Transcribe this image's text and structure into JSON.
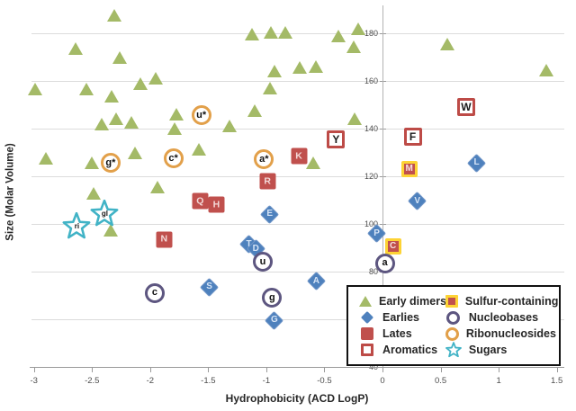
{
  "chart_data": {
    "type": "scatter",
    "title": "",
    "xlabel": "Hydrophobicity (ACD LogP)",
    "ylabel": "Size (Molar Volume)",
    "xlim": [
      -3,
      1.5
    ],
    "ylim": [
      40,
      190
    ],
    "x_ticks": [
      -3,
      -2.5,
      -2,
      -1.5,
      -1,
      -0.5,
      0,
      0.5,
      1,
      1.5
    ],
    "y_ticks": [
      40,
      60,
      80,
      100,
      120,
      140,
      160,
      180
    ],
    "grid": "horizontal",
    "legend_position": "inside-bottom-right",
    "colors": {
      "early_dimers": "#a4ba67",
      "earlies": "#4e81bd",
      "lates": "#c0504d",
      "aromatics_border": "#bd4b47",
      "sulfur_highlight": "#fdd335",
      "nucleobases_ring": "#5d5680",
      "ribonucleosides_ring": "#e2a04a",
      "sugars": "#41b3c6"
    },
    "series": [
      {
        "name": "Early dimers",
        "key": "early-dimers",
        "marker": "triangle",
        "color": "#a4ba67",
        "points": [
          {
            "x": -2.31,
            "y": 187.5
          },
          {
            "x": -2.64,
            "y": 173.5
          },
          {
            "x": -2.26,
            "y": 170
          },
          {
            "x": -2.99,
            "y": 156.5
          },
          {
            "x": -2.55,
            "y": 156.5
          },
          {
            "x": -2.33,
            "y": 153.5
          },
          {
            "x": -2.08,
            "y": 159
          },
          {
            "x": -1.95,
            "y": 161
          },
          {
            "x": -2.42,
            "y": 142
          },
          {
            "x": -2.29,
            "y": 144
          },
          {
            "x": -2.16,
            "y": 142.5
          },
          {
            "x": -1.77,
            "y": 146
          },
          {
            "x": -1.79,
            "y": 140
          },
          {
            "x": -1.58,
            "y": 131.5
          },
          {
            "x": -1.32,
            "y": 141
          },
          {
            "x": -1.1,
            "y": 147.5
          },
          {
            "x": -2.9,
            "y": 127.5
          },
          {
            "x": -2.5,
            "y": 125.5
          },
          {
            "x": -2.13,
            "y": 130
          },
          {
            "x": -2.49,
            "y": 113
          },
          {
            "x": -1.94,
            "y": 115.5
          },
          {
            "x": -0.93,
            "y": 164
          },
          {
            "x": -0.97,
            "y": 157
          },
          {
            "x": -0.71,
            "y": 165.5
          },
          {
            "x": -0.57,
            "y": 166
          },
          {
            "x": -1.12,
            "y": 179.5
          },
          {
            "x": -0.96,
            "y": 180.5
          },
          {
            "x": -0.84,
            "y": 180.5
          },
          {
            "x": -0.38,
            "y": 179
          },
          {
            "x": -0.21,
            "y": 182
          },
          {
            "x": -0.25,
            "y": 174.5
          },
          {
            "x": 0.56,
            "y": 175.5
          },
          {
            "x": 1.41,
            "y": 164.5
          },
          {
            "x": -0.24,
            "y": 144
          },
          {
            "x": -0.6,
            "y": 125.5
          },
          {
            "x": -2.34,
            "y": 97.5
          }
        ]
      },
      {
        "name": "Earlies",
        "key": "earlies",
        "marker": "diamond",
        "color": "#4e81bd",
        "points": [
          {
            "label": "T",
            "x": -1.15,
            "y": 91.5
          },
          {
            "label": "D",
            "x": -1.09,
            "y": 89.5
          },
          {
            "label": "E",
            "x": -0.97,
            "y": 104
          },
          {
            "label": "S",
            "x": -1.49,
            "y": 73.5
          },
          {
            "label": "A",
            "x": -0.57,
            "y": 76
          },
          {
            "label": "G",
            "x": -0.93,
            "y": 59.5
          },
          {
            "label": "P",
            "x": -0.05,
            "y": 96
          },
          {
            "label": "V",
            "x": 0.3,
            "y": 109.5
          },
          {
            "label": "L",
            "x": 0.81,
            "y": 125.5
          }
        ]
      },
      {
        "name": "Lates",
        "key": "lates",
        "marker": "square",
        "color": "#c0504d",
        "points": [
          {
            "label": "K",
            "x": -0.72,
            "y": 128.5
          },
          {
            "label": "R",
            "x": -0.99,
            "y": 118
          },
          {
            "label": "Q",
            "x": -1.57,
            "y": 109.5
          },
          {
            "label": "H",
            "x": -1.43,
            "y": 108
          },
          {
            "label": "N",
            "x": -1.88,
            "y": 93.5
          }
        ]
      },
      {
        "name": "Aromatics",
        "key": "aromatics",
        "marker": "open-square",
        "color": "#bd4b47",
        "points": [
          {
            "label": "Y",
            "x": -0.4,
            "y": 135.5
          },
          {
            "label": "F",
            "x": 0.26,
            "y": 136.5
          },
          {
            "label": "W",
            "x": 0.72,
            "y": 149
          }
        ]
      },
      {
        "name": "Sulfur-containing",
        "key": "sulfur",
        "marker": "sulfur-square",
        "color": "#c0504d",
        "points": [
          {
            "label": "M",
            "x": 0.23,
            "y": 123
          },
          {
            "label": "C",
            "x": 0.09,
            "y": 90.5
          }
        ]
      },
      {
        "name": "Nucleobases",
        "key": "nucleobases",
        "marker": "open-circle",
        "color": "#5d5680",
        "points": [
          {
            "label": "a",
            "x": 0.02,
            "y": 83.5
          },
          {
            "label": "u",
            "x": -1.03,
            "y": 84
          },
          {
            "label": "c",
            "x": -1.96,
            "y": 71
          },
          {
            "label": "g",
            "x": -0.95,
            "y": 69
          }
        ]
      },
      {
        "name": "Ribonucleosides",
        "key": "ribonucleosides",
        "marker": "open-circle",
        "color": "#e2a04a",
        "points": [
          {
            "label": "u*",
            "x": -1.56,
            "y": 145.5
          },
          {
            "label": "c*",
            "x": -1.8,
            "y": 127.5
          },
          {
            "label": "g*",
            "x": -2.34,
            "y": 125.5
          },
          {
            "label": "a*",
            "x": -1.02,
            "y": 127
          }
        ]
      },
      {
        "name": "Sugars",
        "key": "sugars",
        "marker": "star",
        "color": "#41b3c6",
        "points": [
          {
            "label": "ri",
            "x": -2.63,
            "y": 99
          },
          {
            "label": "gl",
            "x": -2.39,
            "y": 104
          }
        ]
      }
    ]
  }
}
